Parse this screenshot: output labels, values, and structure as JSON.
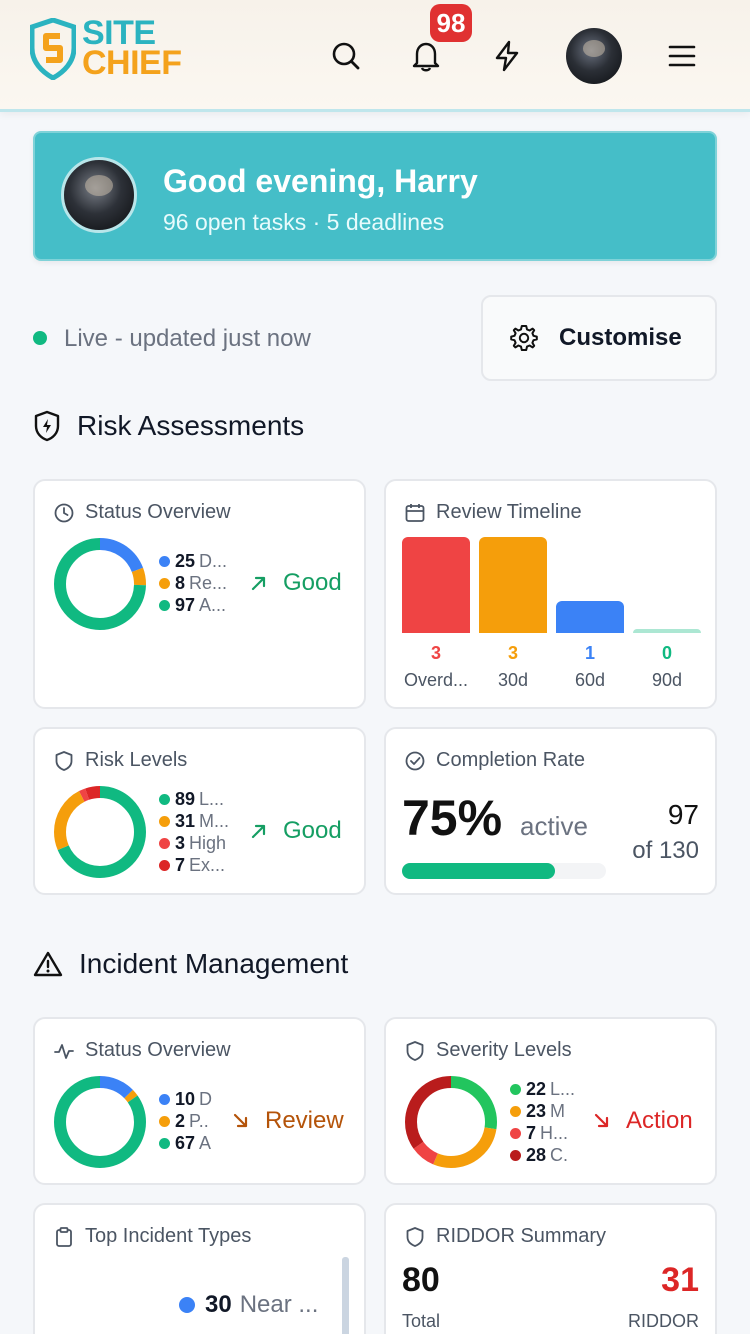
{
  "app": {
    "logo_line1": "SITE",
    "logo_line2": "CHIEF",
    "notification_count": "98"
  },
  "greeting": {
    "title": "Good evening, Harry",
    "subtitle": "96 open tasks · 5 deadlines"
  },
  "live": {
    "text": "Live - updated just now",
    "customise_label": "Customise"
  },
  "colors": {
    "blue": "#3b82f6",
    "amber": "#f59e0b",
    "green": "#10b981",
    "red": "#ef4444",
    "darkred": "#b91c1c",
    "teal": "#45bec8"
  },
  "risk_section": {
    "title": "Risk Assessments",
    "status_overview": {
      "title": "Status Overview",
      "items": [
        {
          "count": "25",
          "label": "D...",
          "color": "#3b82f6",
          "value": 25
        },
        {
          "count": "8",
          "label": "Re...",
          "color": "#f59e0b",
          "value": 8
        },
        {
          "count": "97",
          "label": "A...",
          "color": "#10b981",
          "value": 97
        }
      ],
      "trend": "Good"
    },
    "review_timeline": {
      "title": "Review Timeline",
      "bars": [
        {
          "value": "3",
          "label": "Overd...",
          "color": "#ef4444",
          "num": 3
        },
        {
          "value": "3",
          "label": "30d",
          "color": "#f59e0b",
          "num": 3
        },
        {
          "value": "1",
          "label": "60d",
          "color": "#3b82f6",
          "num": 1
        },
        {
          "value": "0",
          "label": "90d",
          "color": "#10b981",
          "num": 0
        }
      ]
    },
    "risk_levels": {
      "title": "Risk Levels",
      "items": [
        {
          "count": "89",
          "label": "L...",
          "color": "#10b981",
          "value": 89
        },
        {
          "count": "31",
          "label": "M...",
          "color": "#f59e0b",
          "value": 31
        },
        {
          "count": "3",
          "label": "High",
          "color": "#ef4444",
          "value": 3
        },
        {
          "count": "7",
          "label": "Ex...",
          "color": "#dc2626",
          "value": 7
        }
      ],
      "trend": "Good"
    },
    "completion_rate": {
      "title": "Completion Rate",
      "percent": "75%",
      "active_label": "active",
      "count": "97",
      "of_label": "of 130",
      "progress": 0.75
    }
  },
  "incident_section": {
    "title": "Incident Management",
    "status_overview": {
      "title": "Status Overview",
      "items": [
        {
          "count": "10",
          "label": "D",
          "color": "#3b82f6",
          "value": 10
        },
        {
          "count": "2",
          "label": "P..",
          "color": "#f59e0b",
          "value": 2
        },
        {
          "count": "67",
          "label": "A",
          "color": "#10b981",
          "value": 67
        }
      ],
      "trend": "Review"
    },
    "severity_levels": {
      "title": "Severity Levels",
      "items": [
        {
          "count": "22",
          "label": "L...",
          "color": "#22c55e",
          "value": 22
        },
        {
          "count": "23",
          "label": "M",
          "color": "#f59e0b",
          "value": 23
        },
        {
          "count": "7",
          "label": "H...",
          "color": "#ef4444",
          "value": 7
        },
        {
          "count": "28",
          "label": "C.",
          "color": "#b91c1c",
          "value": 28
        }
      ],
      "trend": "Action"
    },
    "top_incident_types": {
      "title": "Top Incident Types",
      "first_count": "30",
      "first_label": "Near ..."
    },
    "riddor_summary": {
      "title": "RIDDOR Summary",
      "total_value": "80",
      "total_label": "Total",
      "riddor_value": "31",
      "riddor_label": "RIDDOR"
    }
  }
}
